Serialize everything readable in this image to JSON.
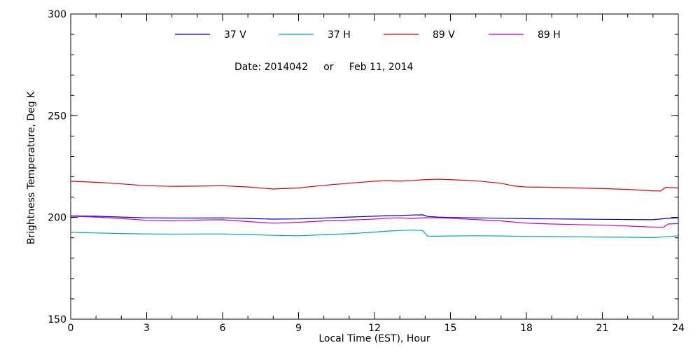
{
  "chart_data": {
    "type": "line",
    "title": "",
    "annotation": "Date: 2014042     or     Feb 11, 2014",
    "xlabel": "Local Time (EST), Hour",
    "ylabel": "Brightness Temperature, Deg K",
    "xlim": [
      0,
      24
    ],
    "ylim": [
      150,
      300
    ],
    "x_ticks": [
      0,
      3,
      6,
      9,
      12,
      15,
      18,
      21,
      24
    ],
    "y_ticks": [
      150,
      200,
      250,
      300
    ],
    "x_minor_step": 1,
    "y_minor_step": 10,
    "grid": false,
    "legend_position": "top",
    "series": [
      {
        "name": "37 V",
        "color": "#0000cc",
        "x": [
          0,
          1,
          2,
          3,
          4,
          5,
          6,
          7,
          8,
          9,
          10,
          11,
          12,
          12.5,
          13,
          13.5,
          13.9,
          14.1,
          14.5,
          15,
          16,
          17,
          18,
          19,
          20,
          21,
          22,
          23,
          23.5,
          24
        ],
        "y": [
          200.8,
          200.6,
          200.2,
          199.8,
          199.7,
          199.7,
          199.8,
          199.5,
          199.2,
          199.3,
          199.7,
          200.2,
          200.6,
          200.9,
          201.0,
          201.2,
          201.3,
          200.5,
          200.2,
          200.0,
          199.8,
          199.6,
          199.4,
          199.3,
          199.2,
          199.1,
          199.0,
          198.9,
          199.5,
          199.8
        ]
      },
      {
        "name": "37 H",
        "color": "#00a0c8",
        "x": [
          0,
          1,
          2,
          3,
          4,
          5,
          6,
          7,
          8,
          9,
          10,
          11,
          12,
          12.5,
          13,
          13.5,
          13.9,
          14.1,
          14.5,
          15,
          16,
          17,
          18,
          19,
          20,
          21,
          22,
          23,
          23.5,
          24
        ],
        "y": [
          192.7,
          192.4,
          192.1,
          191.9,
          191.8,
          191.9,
          191.9,
          191.6,
          191.2,
          191.0,
          191.5,
          192.0,
          192.8,
          193.3,
          193.6,
          193.8,
          193.6,
          190.8,
          190.8,
          190.9,
          191.0,
          190.9,
          190.7,
          190.6,
          190.5,
          190.4,
          190.3,
          190.1,
          190.5,
          191.0
        ]
      },
      {
        "name": "89 V",
        "color": "#e00000",
        "x": [
          0,
          1,
          2,
          3,
          4,
          5,
          6,
          7,
          8,
          9,
          10,
          11,
          12,
          12.5,
          13,
          13.5,
          14,
          14.5,
          15,
          16,
          17,
          17.5,
          18,
          19,
          20,
          21,
          22,
          23,
          23.3,
          23.5,
          24
        ],
        "y": [
          217.8,
          217.3,
          216.5,
          215.6,
          215.3,
          215.4,
          215.6,
          215.0,
          214.0,
          214.5,
          215.8,
          216.8,
          217.8,
          218.2,
          217.9,
          218.2,
          218.6,
          218.8,
          218.6,
          218.0,
          216.8,
          215.5,
          215.0,
          214.8,
          214.5,
          214.2,
          213.8,
          213.1,
          213.0,
          214.8,
          214.5
        ]
      },
      {
        "name": "89 H",
        "color": "#c800c8",
        "x": [
          0,
          1,
          2,
          3,
          4,
          5,
          6,
          7,
          8,
          9,
          10,
          11,
          12,
          12.5,
          13,
          13.5,
          14,
          14.5,
          15,
          16,
          17,
          18,
          19,
          20,
          21,
          22,
          23,
          23.4,
          23.6,
          24
        ],
        "y": [
          200.6,
          200.2,
          199.5,
          198.6,
          198.3,
          198.7,
          198.9,
          198.0,
          197.2,
          197.6,
          198.3,
          198.7,
          199.2,
          199.6,
          199.8,
          199.5,
          199.9,
          199.8,
          199.6,
          199.0,
          198.3,
          197.2,
          196.8,
          196.5,
          196.2,
          195.8,
          195.3,
          195.2,
          196.8,
          197.0
        ]
      }
    ]
  }
}
